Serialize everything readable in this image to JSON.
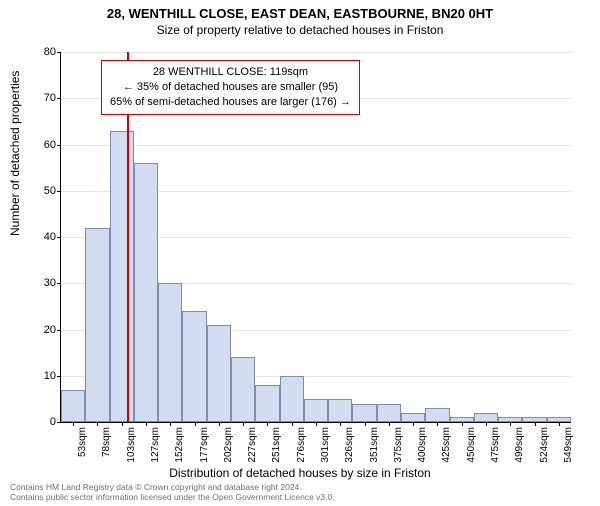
{
  "title_main": "28, WENTHILL CLOSE, EAST DEAN, EASTBOURNE, BN20 0HT",
  "title_sub": "Size of property relative to detached houses in Friston",
  "ylabel": "Number of detached properties",
  "xlabel": "Distribution of detached houses by size in Friston",
  "chart": {
    "type": "histogram",
    "ylim": [
      0,
      80
    ],
    "ytick_step": 10,
    "x_categories": [
      "53sqm",
      "78sqm",
      "103sqm",
      "127sqm",
      "152sqm",
      "177sqm",
      "202sqm",
      "227sqm",
      "251sqm",
      "276sqm",
      "301sqm",
      "326sqm",
      "351sqm",
      "375sqm",
      "400sqm",
      "425sqm",
      "450sqm",
      "475sqm",
      "499sqm",
      "524sqm",
      "549sqm"
    ],
    "values": [
      7,
      42,
      63,
      56,
      30,
      24,
      21,
      14,
      8,
      10,
      5,
      5,
      4,
      4,
      2,
      3,
      1,
      2,
      1,
      1,
      1
    ],
    "bar_fill": "#d2dcf0",
    "bar_stroke": "#7a8db8",
    "background": "#ffffff",
    "grid_color": "#e6e6e6",
    "marker": {
      "position_index": 2.7,
      "color": "#cc0000"
    },
    "annotation": {
      "line1": "28 WENTHILL CLOSE: 119sqm",
      "line2": "← 35% of detached houses are smaller (95)",
      "line3": "65% of semi-detached houses are larger (176) →",
      "border_color": "#cc0000",
      "fontsize": 11
    }
  },
  "footer": {
    "line1": "Contains HM Land Registry data © Crown copyright and database right 2024.",
    "line2": "Contains public sector information licensed under the Open Government Licence v3.0."
  }
}
